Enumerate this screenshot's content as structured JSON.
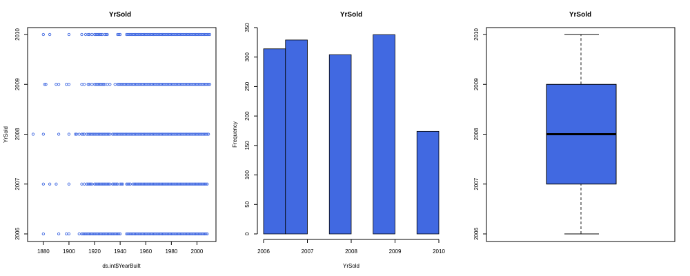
{
  "colors": {
    "accent": "#4169E1",
    "points": "#4169E1",
    "ink": "#000000"
  },
  "chart_data": [
    {
      "type": "scatter",
      "title": "YrSold",
      "xlabel": "ds.int$YearBuilt",
      "ylabel": "YrSold",
      "xlim": [
        1868,
        2013
      ],
      "ylim": [
        2005.85,
        2010.15
      ],
      "xticks": [
        1880,
        1900,
        1920,
        1940,
        1960,
        1980,
        2000
      ],
      "yticks": [
        2006,
        2007,
        2008,
        2009,
        2010
      ],
      "marker": "open-circle",
      "rows": [
        {
          "y": 2010,
          "x_sparse": [
            1880,
            1885,
            1900,
            1910,
            1913,
            1915,
            1916,
            1918,
            1920,
            1921,
            1922,
            1923,
            1924,
            1925,
            1926,
            1928,
            1929,
            1930,
            1938,
            1939,
            1940
          ],
          "x_dense_from": 1945,
          "x_dense_to": 2010
        },
        {
          "y": 2009,
          "x_sparse": [
            1881,
            1882,
            1890,
            1892,
            1898,
            1900,
            1910,
            1912,
            1915,
            1916,
            1918,
            1920,
            1921,
            1922,
            1923,
            1924,
            1925,
            1926,
            1927,
            1928,
            1930,
            1932,
            1936
          ],
          "x_dense_from": 1938,
          "x_dense_to": 2010
        },
        {
          "y": 2008,
          "x_sparse": [
            1872,
            1880,
            1892,
            1900,
            1905,
            1906,
            1908,
            1910,
            1911,
            1912,
            1914,
            1915,
            1916,
            1917,
            1918,
            1919,
            1920,
            1921,
            1922,
            1923,
            1924,
            1925,
            1926,
            1927,
            1928,
            1929,
            1930,
            1931,
            1932,
            1934,
            1935,
            1936,
            1937,
            1938,
            1939,
            1940
          ],
          "x_dense_from": 1941,
          "x_dense_to": 2009
        },
        {
          "y": 2007,
          "x_sparse": [
            1880,
            1885,
            1890,
            1900,
            1910,
            1912,
            1914,
            1915,
            1916,
            1917,
            1918,
            1920,
            1921,
            1922,
            1923,
            1924,
            1925,
            1926,
            1927,
            1928,
            1929,
            1930,
            1931,
            1932,
            1934,
            1935,
            1936,
            1937,
            1938,
            1940,
            1941,
            1942,
            1945,
            1946,
            1947,
            1948
          ],
          "x_dense_from": 1950,
          "x_dense_to": 2008
        },
        {
          "y": 2006,
          "x_sparse": [
            1880,
            1892,
            1898,
            1900,
            1908,
            1910,
            1911,
            1912,
            1913,
            1914,
            1915,
            1916,
            1917,
            1918,
            1919,
            1920,
            1921,
            1922,
            1923,
            1924,
            1925,
            1926,
            1927,
            1928,
            1929,
            1930,
            1931,
            1932,
            1933,
            1934,
            1935,
            1936,
            1937,
            1938,
            1939,
            1940
          ],
          "x_dense_from": 1945,
          "x_dense_to": 2008
        }
      ]
    },
    {
      "type": "bar",
      "title": "YrSold",
      "xlabel": "YrSold",
      "ylabel": "Frequency",
      "xlim": [
        2006,
        2010
      ],
      "ylim": [
        0,
        350
      ],
      "xticks": [
        2006,
        2007,
        2008,
        2009,
        2010
      ],
      "yticks": [
        0,
        50,
        100,
        150,
        200,
        250,
        300,
        350
      ],
      "bins": [
        {
          "x0": 2006.0,
          "x1": 2006.5,
          "value": 314
        },
        {
          "x0": 2006.5,
          "x1": 2007.0,
          "value": 329
        },
        {
          "x0": 2007.0,
          "x1": 2007.5,
          "value": 0
        },
        {
          "x0": 2007.5,
          "x1": 2008.0,
          "value": 304
        },
        {
          "x0": 2008.0,
          "x1": 2008.5,
          "value": 0
        },
        {
          "x0": 2008.5,
          "x1": 2009.0,
          "value": 338
        },
        {
          "x0": 2009.0,
          "x1": 2009.5,
          "value": 0
        },
        {
          "x0": 2009.5,
          "x1": 2010.0,
          "value": 174
        }
      ]
    },
    {
      "type": "box",
      "title": "YrSold",
      "ylim": [
        2005.85,
        2010.15
      ],
      "yticks": [
        2006,
        2007,
        2008,
        2009,
        2010
      ],
      "min": 2006,
      "q1": 2007,
      "median": 2008,
      "q3": 2009,
      "max": 2010
    }
  ]
}
